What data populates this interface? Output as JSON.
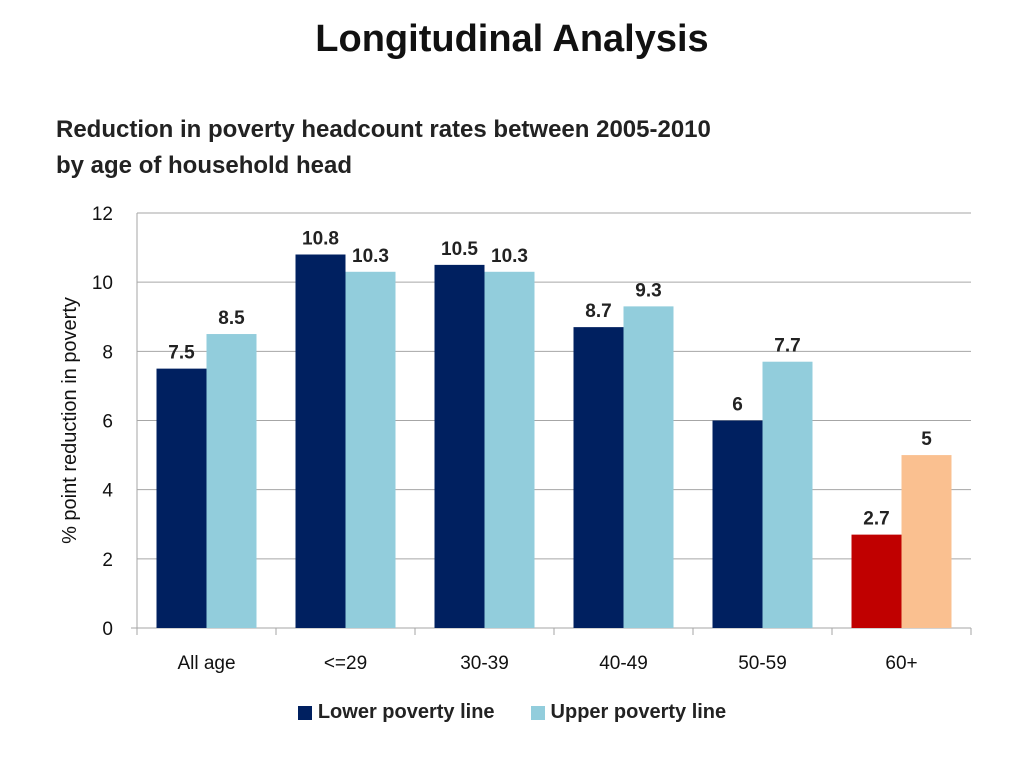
{
  "title": "Longitudinal Analysis",
  "subtitle_lines": [
    "Reduction in poverty headcount rates between 2005-2010",
    "by age of household head"
  ],
  "colors": {
    "lower": "#002060",
    "upper": "#92CDDC",
    "lower_highlight": "#C00000",
    "upper_highlight": "#FAC090",
    "grid": "#A6A6A6"
  },
  "chart_data": {
    "type": "bar",
    "title": "Reduction in poverty headcount rates between 2005-2010 by age of household head",
    "xlabel": "",
    "ylabel": "% point reduction in poverty",
    "ylim": [
      0,
      12
    ],
    "yticks": [
      0,
      2,
      4,
      6,
      8,
      10,
      12
    ],
    "categories": [
      "All age",
      "<=29",
      "30-39",
      "40-49",
      "50-59",
      "60+"
    ],
    "series": [
      {
        "name": "Lower poverty line",
        "values": [
          7.5,
          10.8,
          10.5,
          8.7,
          6,
          2.7
        ]
      },
      {
        "name": "Upper poverty line",
        "values": [
          8.5,
          10.3,
          10.3,
          9.3,
          7.7,
          5
        ]
      }
    ],
    "highlight_category": "60+",
    "legend_position": "bottom"
  }
}
